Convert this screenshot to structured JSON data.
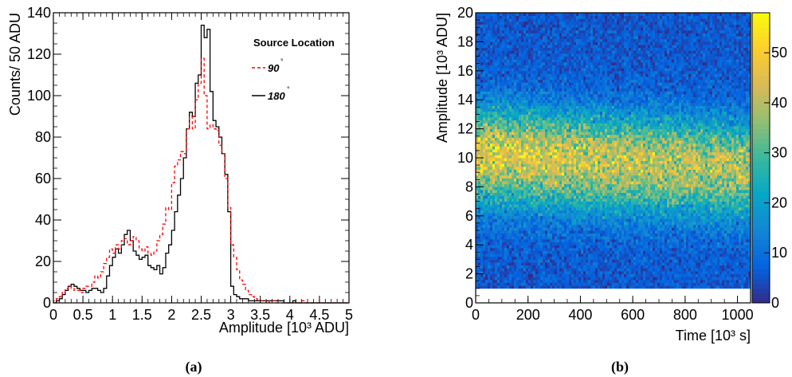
{
  "chart_data": [
    {
      "type": "line",
      "panel_label": "(a)",
      "xlabel": "Amplitude [10³ ADU]",
      "ylabel": "Counts/ 50 ADU",
      "xlim": [
        0,
        5
      ],
      "ylim": [
        0,
        140
      ],
      "x_ticks": [
        "0",
        "0.5",
        "1",
        "1.5",
        "2",
        "2.5",
        "3",
        "3.5",
        "4",
        "4.5",
        "5"
      ],
      "y_ticks": [
        "0",
        "20",
        "40",
        "60",
        "80",
        "100",
        "120",
        "140"
      ],
      "legend": {
        "title": "Source Location",
        "position": "top-right"
      },
      "bin_width": 0.05,
      "series": [
        {
          "name": "90°",
          "label_text": "90",
          "degree_mark": "°",
          "color": "#ff0000",
          "style": "dashed",
          "values": [
            1,
            2,
            3,
            5,
            7,
            8,
            7,
            6,
            6,
            5,
            7,
            8,
            8,
            10,
            13,
            12,
            15,
            19,
            22,
            26,
            24,
            28,
            26,
            30,
            31,
            28,
            30,
            32,
            30,
            26,
            25,
            27,
            24,
            23,
            25,
            30,
            33,
            38,
            46,
            45,
            58,
            66,
            69,
            73,
            72,
            84,
            90,
            84,
            98,
            106,
            118,
            100,
            84,
            86,
            84,
            83,
            76,
            72,
            60,
            46,
            28,
            22,
            16,
            11,
            9,
            6,
            4,
            3,
            2,
            1,
            1,
            1,
            0,
            1,
            1,
            0,
            0,
            0,
            0,
            0,
            0,
            0,
            0,
            0,
            1,
            0,
            0,
            0,
            0,
            0,
            0,
            0,
            0,
            0,
            0,
            0,
            0,
            0,
            0,
            0
          ]
        },
        {
          "name": "180°",
          "label_text": "180",
          "degree_mark": "°",
          "color": "#000000",
          "style": "solid",
          "values": [
            0,
            1,
            2,
            4,
            6,
            8,
            9,
            8,
            7,
            6,
            6,
            5,
            6,
            7,
            7,
            6,
            5,
            7,
            13,
            18,
            22,
            26,
            24,
            28,
            33,
            35,
            30,
            25,
            23,
            21,
            22,
            23,
            18,
            17,
            16,
            18,
            14,
            17,
            24,
            28,
            35,
            44,
            52,
            60,
            70,
            84,
            92,
            90,
            106,
            110,
            134,
            128,
            132,
            102,
            88,
            85,
            80,
            72,
            62,
            44,
            8,
            4,
            3,
            2,
            2,
            2,
            1,
            1,
            1,
            1,
            1,
            1,
            1,
            1,
            1,
            1,
            1,
            1,
            0,
            0,
            0,
            1,
            0,
            0,
            0,
            0,
            0,
            0,
            0,
            0,
            0,
            0,
            0,
            0,
            0,
            0,
            0,
            0,
            0,
            0
          ]
        }
      ]
    },
    {
      "type": "heatmap",
      "panel_label": "(b)",
      "xlabel": "Time [10³ s]",
      "ylabel": "Amplitude [10³ ADU]",
      "xlim": [
        0,
        1050
      ],
      "ylim": [
        0,
        20
      ],
      "x_ticks": [
        "0",
        "200",
        "400",
        "600",
        "800",
        "1000"
      ],
      "y_ticks": [
        "0",
        "2",
        "4",
        "6",
        "8",
        "10",
        "12",
        "14",
        "16",
        "18",
        "20"
      ],
      "colorbar": {
        "range": [
          0,
          58
        ],
        "ticks": [
          "0",
          "10",
          "20",
          "30",
          "40",
          "50"
        ],
        "palette": "bird"
      },
      "data_start_amplitude": 1.0,
      "band": {
        "centre_start": 10.3,
        "centre_end": 9.3,
        "peak_count_start": 40,
        "peak_count_end": 34,
        "sigma_low": 2.4,
        "sigma_high": 2.2,
        "background_count": 6
      },
      "colors": {
        "stops": [
          "#352a87",
          "#0363e1",
          "#1485d4",
          "#06a7c6",
          "#38b99e",
          "#92bf73",
          "#d9ba56",
          "#fcce2e",
          "#f9fb0e"
        ]
      }
    }
  ]
}
